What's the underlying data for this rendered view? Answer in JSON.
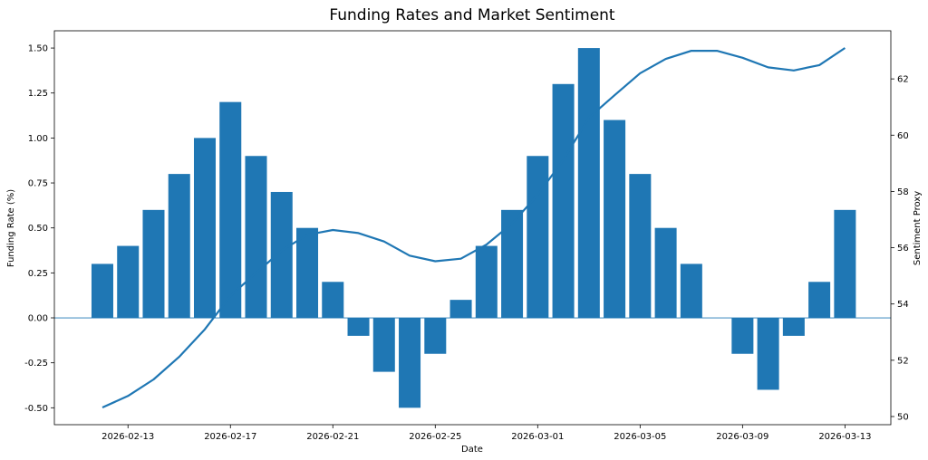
{
  "chart_data": {
    "type": "bar+line",
    "title": "Funding Rates and Market Sentiment",
    "xlabel": "Date",
    "ylabel": "Funding Rate (%)",
    "y2label": "Sentiment Proxy",
    "colors": {
      "bars": "#1f77b4",
      "line": "#1f77b4",
      "zero_line": "#1f77b4"
    },
    "xlim": [
      "2026-02-10T03:00",
      "2026-03-14T19:00"
    ],
    "ylim": [
      -0.594,
      1.596
    ],
    "y2lim": [
      49.71,
      63.71
    ],
    "x_ticks": [
      "2026-02-13",
      "2026-02-17",
      "2026-02-21",
      "2026-02-25",
      "2026-03-01",
      "2026-03-05",
      "2026-03-09",
      "2026-03-13"
    ],
    "y_ticks": [
      "-0.50",
      "-0.25",
      "0.00",
      "0.25",
      "0.50",
      "0.75",
      "1.00",
      "1.25",
      "1.50"
    ],
    "y2_ticks": [
      "50",
      "52",
      "54",
      "56",
      "58",
      "60",
      "62"
    ],
    "grid": false,
    "zero_line": 0,
    "dates": [
      "2026-02-12",
      "2026-02-13",
      "2026-02-14",
      "2026-02-15",
      "2026-02-16",
      "2026-02-17",
      "2026-02-18",
      "2026-02-19",
      "2026-02-20",
      "2026-02-21",
      "2026-02-22",
      "2026-02-23",
      "2026-02-24",
      "2026-02-25",
      "2026-02-26",
      "2026-02-27",
      "2026-02-28",
      "2026-03-01",
      "2026-03-02",
      "2026-03-03",
      "2026-03-04",
      "2026-03-05",
      "2026-03-06",
      "2026-03-07",
      "2026-03-08",
      "2026-03-09",
      "2026-03-10",
      "2026-03-11",
      "2026-03-12",
      "2026-03-13"
    ],
    "series": [
      {
        "kind": "bar",
        "axis": "left",
        "values": [
          0.3,
          0.4,
          0.6,
          0.8,
          1.0,
          1.2,
          0.9,
          0.7,
          0.5,
          0.2,
          -0.1,
          -0.3,
          -0.5,
          -0.2,
          0.1,
          0.4,
          0.6,
          0.9,
          1.3,
          1.5,
          1.1,
          0.8,
          0.5,
          0.3,
          0.0,
          -0.2,
          -0.4,
          -0.1,
          0.2,
          0.6
        ]
      },
      {
        "kind": "line",
        "axis": "right",
        "values": [
          50.32,
          50.73,
          51.32,
          52.12,
          53.1,
          54.29,
          55.1,
          55.9,
          56.46,
          56.63,
          56.52,
          56.22,
          55.72,
          55.52,
          55.61,
          56.11,
          56.86,
          57.88,
          59.12,
          60.62,
          61.42,
          62.2,
          62.71,
          63.0,
          63.0,
          62.75,
          62.41,
          62.3,
          62.49,
          63.1
        ]
      }
    ]
  }
}
